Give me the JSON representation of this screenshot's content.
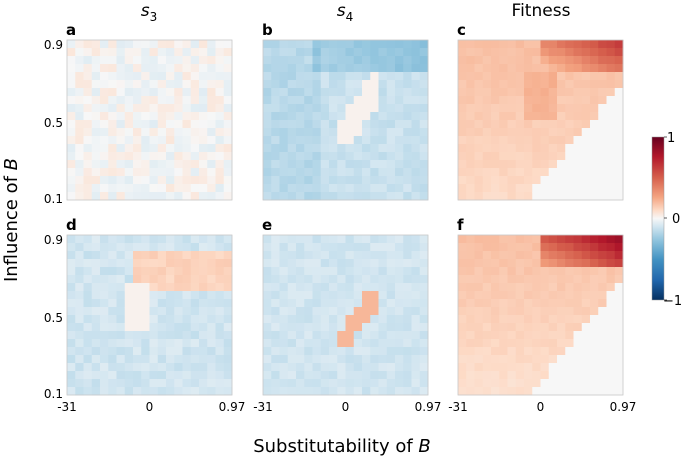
{
  "chart_data": {
    "type": "heatmap",
    "columns": [
      {
        "title": "s",
        "subscript": "3"
      },
      {
        "title": "s",
        "subscript": "4"
      },
      {
        "title": "Fitness",
        "subscript": ""
      }
    ],
    "panels": [
      {
        "letter": "a",
        "row": 0,
        "col": 0,
        "pattern": "noise_faint"
      },
      {
        "letter": "b",
        "row": 0,
        "col": 1,
        "pattern": "s4_top"
      },
      {
        "letter": "c",
        "row": 0,
        "col": 2,
        "pattern": "fitness_top"
      },
      {
        "letter": "d",
        "row": 1,
        "col": 0,
        "pattern": "s3_bottom"
      },
      {
        "letter": "e",
        "row": 1,
        "col": 1,
        "pattern": "s4_bottom"
      },
      {
        "letter": "f",
        "row": 1,
        "col": 2,
        "pattern": "fitness_bottom"
      }
    ],
    "grid": {
      "nx": 20,
      "ny": 20
    },
    "x_ticks": [
      "-31",
      "0",
      "0.97"
    ],
    "y_ticks": [
      "0.9",
      "0.5",
      "0.1"
    ],
    "xlabel_prefix": "Substitutability of ",
    "xlabel_var": "B",
    "ylabel_prefix": "Influence of ",
    "ylabel_var": "B",
    "colorbar": {
      "min": -1,
      "max": 1,
      "ticks": [
        "1",
        "0",
        "−1"
      ],
      "cmap": "RdBu_r"
    }
  },
  "colors": {
    "neg": "#053061",
    "mid": "#f7f7f7",
    "pos": "#67001f",
    "axis": "#c8c8c8"
  }
}
